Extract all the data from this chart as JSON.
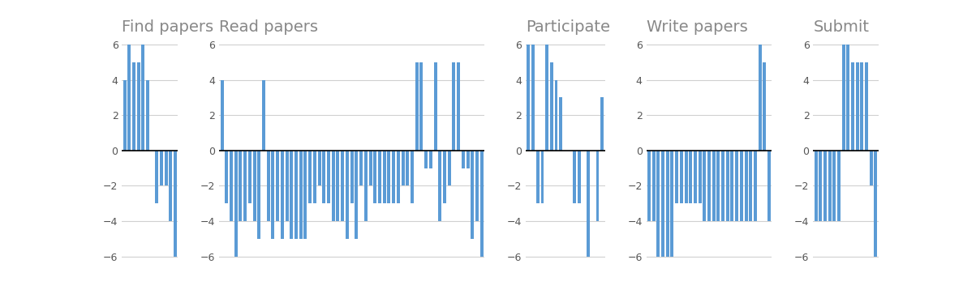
{
  "title_fontsize": 14,
  "title_color": "#888888",
  "bar_color": "#5b9bd5",
  "bar_width": 0.7,
  "ylim": [
    -6.5,
    6.5
  ],
  "yticks": [
    -6,
    -4,
    -2,
    0,
    2,
    4,
    6
  ],
  "background_color": "#ffffff",
  "subplots": [
    {
      "title": "Find papers",
      "values": [
        4,
        6,
        5,
        5,
        6,
        4,
        0,
        -3,
        -2,
        -2,
        -4,
        -6
      ]
    },
    {
      "title": "Read papers",
      "values": [
        4,
        -3,
        -4,
        -6,
        -4,
        -4,
        -3,
        -4,
        -5,
        4,
        -4,
        -5,
        -4,
        -5,
        -4,
        -5,
        -5,
        -5,
        -5,
        -3,
        -3,
        -2,
        -3,
        -3,
        -4,
        -4,
        -4,
        -5,
        -3,
        -5,
        -2,
        -4,
        -2,
        -3,
        -3,
        -3,
        -3,
        -3,
        -3,
        -2,
        -2,
        -3,
        5,
        5,
        -1,
        -1,
        5,
        -4,
        -3,
        -2,
        5,
        5,
        -1,
        -1,
        -5,
        -4,
        -6
      ]
    },
    {
      "title": "Participate",
      "values": [
        6,
        6,
        -3,
        -3,
        6,
        5,
        4,
        3,
        0,
        0,
        -3,
        -3,
        0,
        -6,
        0,
        -4,
        3
      ]
    },
    {
      "title": "Write papers",
      "values": [
        -4,
        -4,
        -6,
        -6,
        -6,
        -6,
        -3,
        -3,
        -3,
        -3,
        -3,
        -3,
        -4,
        -4,
        -4,
        -4,
        -4,
        -4,
        -4,
        -4,
        -4,
        -4,
        -4,
        -4,
        6,
        5,
        -4
      ]
    },
    {
      "title": "Submit",
      "values": [
        -4,
        -4,
        -4,
        -4,
        -4,
        -4,
        6,
        6,
        5,
        5,
        5,
        5,
        -2,
        -6
      ]
    }
  ]
}
